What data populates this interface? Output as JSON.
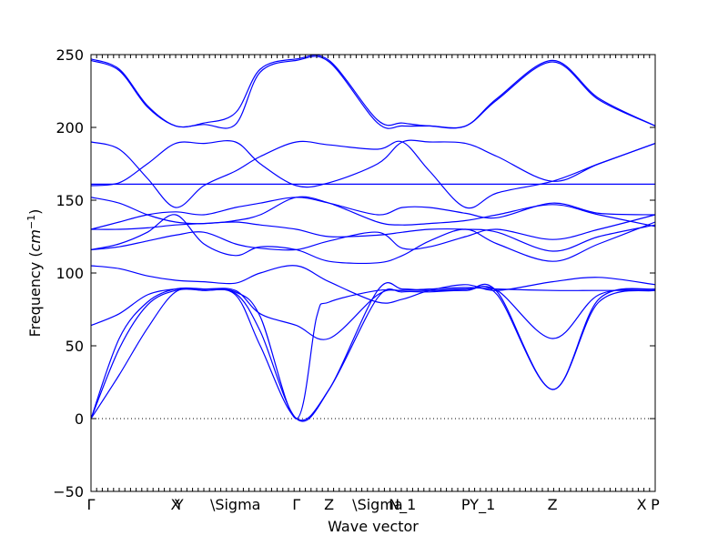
{
  "chart_data": {
    "type": "line",
    "title": "",
    "xlabel": "Wave vector",
    "ylabel": "Frequency ($cm^{-1}$)",
    "ylabel_parts": {
      "text": "Frequency (",
      "unit_base": "cm",
      "unit_exp": "−1",
      "close": ")"
    },
    "ylim": [
      -50,
      250
    ],
    "yticks": [
      -50,
      0,
      50,
      100,
      150,
      200,
      250
    ],
    "ytick_labels": [
      "−50",
      "0",
      "50",
      "100",
      "150",
      "200",
      "250"
    ],
    "xlim": [
      0,
      10
    ],
    "high_symmetry_points": [
      {
        "x": 0.0,
        "label": "Γ"
      },
      {
        "x": 1.5,
        "label": "X"
      },
      {
        "x": 1.56,
        "label": "Y"
      },
      {
        "x": 2.56,
        "label": "\\Sigma"
      },
      {
        "x": 3.64,
        "label": "Γ"
      },
      {
        "x": 4.22,
        "label": "Z"
      },
      {
        "x": 5.08,
        "label": "\\Sigma"
      },
      {
        "x": 5.52,
        "label": "N_1"
      },
      {
        "x": 6.64,
        "label": "P"
      },
      {
        "x": 6.94,
        "label": "Y_1"
      },
      {
        "x": 8.18,
        "label": "Z"
      },
      {
        "x": 9.76,
        "label": "X"
      },
      {
        "x": 10.0,
        "label": "P"
      }
    ],
    "grid": false,
    "zero_line": true,
    "series_color": "#0000ff",
    "series": [
      {
        "x": [
          0,
          0.5,
          1.0,
          1.5,
          2.0,
          2.56,
          3.0,
          3.64,
          4.22,
          5.08,
          5.52,
          6.0,
          6.64,
          7.2,
          8.18,
          9.0,
          10.0
        ],
        "y": [
          0,
          48,
          78,
          88,
          88,
          85,
          50,
          0,
          20,
          83,
          87,
          87,
          88,
          85,
          20,
          80,
          88
        ]
      },
      {
        "x": [
          0,
          0.5,
          1.0,
          1.5,
          2.0,
          2.56,
          3.0,
          3.64,
          4.22,
          5.08,
          5.52,
          6.0,
          6.64,
          7.2,
          8.18,
          9.0,
          10.0
        ],
        "y": [
          0,
          30,
          62,
          87,
          88,
          86,
          60,
          0,
          20,
          88,
          89,
          88,
          88,
          87,
          20,
          82,
          89
        ]
      },
      {
        "x": [
          0,
          0.5,
          1.0,
          1.5,
          2.0,
          2.56,
          3.0,
          3.64,
          4.0,
          4.22,
          5.08,
          5.52,
          6.0,
          6.64,
          7.2,
          8.18,
          9.0,
          10.0
        ],
        "y": [
          0,
          55,
          80,
          89,
          89,
          87,
          70,
          0,
          70,
          80,
          88,
          88,
          89,
          90,
          89,
          88,
          88,
          88
        ]
      },
      {
        "x": [
          0,
          0.5,
          1.0,
          1.5,
          2.0,
          2.56,
          3.0,
          3.64,
          4.22,
          5.08,
          5.52,
          6.0,
          6.64,
          7.2,
          8.18,
          9.0,
          10.0
        ],
        "y": [
          64,
          72,
          85,
          89,
          89,
          88,
          72,
          64,
          55,
          85,
          88,
          88,
          89,
          88,
          55,
          85,
          89
        ]
      },
      {
        "x": [
          0,
          0.5,
          1.0,
          1.5,
          2.0,
          2.56,
          3.0,
          3.64,
          4.22,
          5.08,
          5.52,
          6.0,
          6.64,
          7.2,
          8.18,
          9.0,
          10.0
        ],
        "y": [
          105,
          103,
          98,
          95,
          94,
          93,
          100,
          105,
          94,
          80,
          82,
          88,
          92,
          88,
          94,
          97,
          92
        ]
      },
      {
        "x": [
          0,
          0.5,
          1.0,
          1.5,
          2.0,
          2.56,
          3.0,
          3.64,
          4.22,
          5.08,
          5.52,
          6.0,
          6.64,
          7.2,
          8.18,
          9.0,
          10.0
        ],
        "y": [
          116,
          118,
          122,
          126,
          128,
          120,
          117,
          116,
          122,
          128,
          117,
          118,
          125,
          130,
          123,
          130,
          140
        ]
      },
      {
        "x": [
          0,
          0.5,
          1.0,
          1.5,
          2.0,
          2.56,
          3.0,
          3.64,
          4.22,
          5.08,
          5.52,
          6.0,
          6.64,
          7.2,
          8.18,
          9.0,
          10.0
        ],
        "y": [
          116,
          120,
          128,
          140,
          120,
          112,
          118,
          116,
          108,
          107,
          112,
          122,
          130,
          120,
          108,
          120,
          135
        ]
      },
      {
        "x": [
          0,
          0.5,
          1.0,
          1.5,
          2.0,
          2.56,
          3.0,
          3.64,
          4.22,
          5.08,
          5.52,
          6.0,
          6.64,
          7.2,
          8.18,
          9.0,
          10.0
        ],
        "y": [
          130,
          130,
          131,
          133,
          134,
          135,
          133,
          130,
          125,
          126,
          128,
          130,
          130,
          128,
          115,
          125,
          133
        ]
      },
      {
        "x": [
          0,
          0.5,
          1.0,
          1.5,
          2.0,
          2.56,
          3.0,
          3.64,
          4.22,
          5.08,
          5.52,
          6.0,
          6.64,
          7.2,
          8.18,
          9.0,
          10.0
        ],
        "y": [
          152,
          148,
          140,
          135,
          134,
          136,
          140,
          152,
          148,
          135,
          133,
          134,
          136,
          140,
          147,
          140,
          132
        ]
      },
      {
        "x": [
          0,
          0.5,
          1.0,
          1.5,
          2.0,
          2.56,
          3.0,
          3.64,
          4.22,
          5.08,
          5.52,
          6.0,
          6.64,
          7.2,
          8.18,
          9.0,
          10.0
        ],
        "y": [
          130,
          135,
          140,
          142,
          140,
          145,
          148,
          152,
          148,
          140,
          145,
          145,
          141,
          138,
          148,
          141,
          140
        ]
      },
      {
        "x": [
          0,
          0.5,
          1.0,
          1.5,
          2.0,
          2.56,
          3.0,
          3.64,
          4.22,
          5.08,
          5.52,
          6.0,
          6.64,
          7.2,
          8.18,
          9.0,
          10.0
        ],
        "y": [
          161,
          161,
          161,
          161,
          161,
          161,
          161,
          161,
          161,
          161,
          161,
          161,
          161,
          161,
          161,
          161,
          161
        ]
      },
      {
        "x": [
          0,
          0.5,
          1.0,
          1.5,
          2.0,
          2.56,
          3.0,
          3.64,
          4.22,
          5.08,
          5.52,
          6.0,
          6.64,
          7.2,
          8.18,
          9.0,
          10.0
        ],
        "y": [
          190,
          185,
          165,
          145,
          160,
          170,
          180,
          190,
          188,
          185,
          190,
          170,
          145,
          155,
          163,
          175,
          189
        ]
      },
      {
        "x": [
          0,
          0.5,
          1.0,
          1.5,
          2.0,
          2.56,
          3.0,
          3.64,
          4.22,
          5.08,
          5.52,
          6.0,
          6.64,
          7.2,
          8.18,
          9.0,
          10.0
        ],
        "y": [
          160,
          162,
          175,
          189,
          189,
          190,
          175,
          160,
          162,
          175,
          190,
          190,
          189,
          180,
          163,
          175,
          189
        ]
      },
      {
        "x": [
          0,
          0.5,
          1.0,
          1.5,
          2.0,
          2.56,
          3.0,
          3.64,
          4.22,
          5.08,
          5.52,
          6.0,
          6.64,
          7.2,
          8.18,
          9.0,
          10.0
        ],
        "y": [
          247,
          240,
          215,
          201,
          203,
          210,
          240,
          247,
          246,
          205,
          203,
          201,
          201,
          220,
          246,
          220,
          201
        ]
      },
      {
        "x": [
          0,
          0.5,
          1.0,
          1.5,
          2.0,
          2.56,
          3.0,
          3.64,
          4.22,
          5.08,
          5.52,
          6.0,
          6.64,
          7.2,
          8.18,
          9.0,
          10.0
        ],
        "y": [
          246,
          239,
          214,
          201,
          202,
          202,
          238,
          246,
          245,
          203,
          201,
          201,
          201,
          219,
          245,
          219,
          201
        ]
      }
    ]
  }
}
